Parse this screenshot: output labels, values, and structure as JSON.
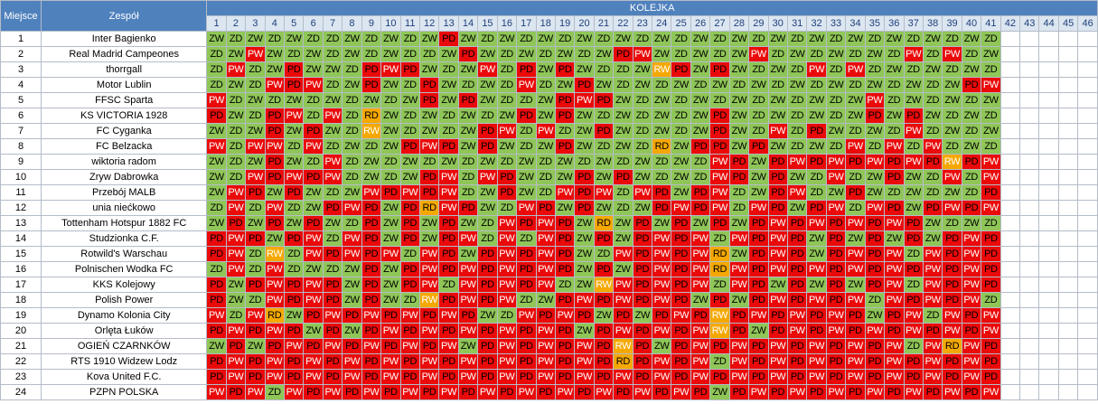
{
  "header": {
    "position_label": "Miejsce",
    "team_label": "Zespół",
    "round_group_label": "KOLEJKA"
  },
  "rounds": [
    "1",
    "2",
    "3",
    "4",
    "5",
    "6",
    "7",
    "8",
    "9",
    "10",
    "11",
    "12",
    "13",
    "14",
    "15",
    "16",
    "17",
    "18",
    "19",
    "20",
    "21",
    "22",
    "23",
    "24",
    "25",
    "26",
    "27",
    "28",
    "29",
    "30",
    "31",
    "32",
    "33",
    "34",
    "35",
    "36",
    "37",
    "38",
    "39",
    "40",
    "41",
    "42",
    "43",
    "44",
    "45",
    "46"
  ],
  "legend_colors": {
    "ZW": "#8fc657",
    "ZD": "#8fc657",
    "PW": "#ea0a0a",
    "PD": "#ea0a0a",
    "RW": "#f5a800",
    "RD": "#f5a800"
  },
  "teams": [
    {
      "pos": "1",
      "name": "Inter Bagienko",
      "results": [
        "ZW",
        "ZD",
        "ZW",
        "ZD",
        "ZW",
        "ZD",
        "ZD",
        "ZW",
        "ZD",
        "ZW",
        "ZD",
        "ZW",
        "PD",
        "ZW",
        "ZD",
        "ZW",
        "ZD",
        "ZW",
        "ZD",
        "ZW",
        "ZD",
        "ZW",
        "ZD",
        "ZW",
        "ZD",
        "ZW",
        "ZD",
        "ZW",
        "ZD",
        "ZW",
        "ZD",
        "ZW",
        "ZD",
        "ZW",
        "ZD",
        "ZW",
        "ZD",
        "ZW",
        "ZD",
        "ZW",
        "ZD",
        "",
        "",
        "",
        "",
        ""
      ]
    },
    {
      "pos": "2",
      "name": "Real Madrid Campeones",
      "results": [
        "ZD",
        "ZW",
        "PW",
        "ZW",
        "ZD",
        "ZW",
        "ZD",
        "ZW",
        "ZD",
        "ZW",
        "ZD",
        "ZD",
        "ZW",
        "PD",
        "ZW",
        "ZD",
        "ZW",
        "ZD",
        "ZW",
        "ZD",
        "ZW",
        "PD",
        "PW",
        "ZW",
        "ZD",
        "ZW",
        "ZD",
        "ZW",
        "PW",
        "ZD",
        "ZW",
        "ZD",
        "ZW",
        "ZD",
        "ZW",
        "ZD",
        "PW",
        "ZD",
        "PW",
        "ZD",
        "ZW",
        "",
        "",
        "",
        "",
        ""
      ]
    },
    {
      "pos": "3",
      "name": "thorrgall",
      "results": [
        "ZD",
        "PW",
        "ZD",
        "ZW",
        "PD",
        "ZW",
        "ZW",
        "ZD",
        "PD",
        "PW",
        "PD",
        "ZW",
        "ZD",
        "ZW",
        "PW",
        "ZD",
        "PD",
        "ZW",
        "PD",
        "ZW",
        "ZD",
        "ZD",
        "ZW",
        "RW",
        "PD",
        "ZW",
        "PD",
        "ZW",
        "ZD",
        "ZW",
        "ZD",
        "PW",
        "ZD",
        "PW",
        "ZD",
        "ZW",
        "ZD",
        "ZW",
        "ZD",
        "ZW",
        "ZD",
        "",
        "",
        "",
        "",
        ""
      ]
    },
    {
      "pos": "4",
      "name": "Motor Lublin",
      "results": [
        "ZD",
        "ZW",
        "ZD",
        "PW",
        "PD",
        "PW",
        "ZD",
        "ZW",
        "PD",
        "ZW",
        "ZD",
        "PD",
        "ZW",
        "ZD",
        "ZW",
        "ZD",
        "PW",
        "ZD",
        "ZW",
        "PD",
        "ZW",
        "ZD",
        "ZW",
        "ZD",
        "ZW",
        "ZD",
        "ZW",
        "ZD",
        "ZW",
        "ZD",
        "ZW",
        "ZD",
        "ZW",
        "ZD",
        "ZW",
        "ZD",
        "ZW",
        "ZD",
        "ZW",
        "PD",
        "PW",
        "",
        "",
        "",
        "",
        ""
      ]
    },
    {
      "pos": "5",
      "name": "FFSC Sparta",
      "results": [
        "PW",
        "ZD",
        "ZW",
        "ZD",
        "ZW",
        "ZD",
        "ZW",
        "ZD",
        "ZW",
        "ZD",
        "ZW",
        "PD",
        "ZW",
        "PD",
        "ZW",
        "ZD",
        "ZD",
        "ZW",
        "PD",
        "PW",
        "PD",
        "ZW",
        "ZD",
        "ZW",
        "ZD",
        "ZW",
        "ZD",
        "ZW",
        "ZD",
        "ZW",
        "ZD",
        "ZW",
        "ZD",
        "ZW",
        "PW",
        "ZD",
        "ZW",
        "ZD",
        "ZW",
        "ZD",
        "ZW",
        "",
        "",
        "",
        "",
        ""
      ]
    },
    {
      "pos": "6",
      "name": "KS VICTORIA 1928",
      "results": [
        "PD",
        "ZW",
        "ZD",
        "PD",
        "PW",
        "ZD",
        "PW",
        "ZD",
        "RD",
        "ZW",
        "ZD",
        "ZW",
        "ZD",
        "ZW",
        "ZD",
        "ZW",
        "PD",
        "ZW",
        "PD",
        "ZW",
        "ZD",
        "ZW",
        "ZD",
        "ZW",
        "ZD",
        "ZW",
        "PD",
        "ZW",
        "ZD",
        "ZW",
        "ZD",
        "ZW",
        "ZD",
        "ZW",
        "PD",
        "ZW",
        "PD",
        "ZW",
        "ZD",
        "ZW",
        "ZD",
        "",
        "",
        "",
        "",
        ""
      ]
    },
    {
      "pos": "7",
      "name": "FC Cyganka",
      "results": [
        "ZW",
        "ZD",
        "ZW",
        "PD",
        "ZW",
        "PD",
        "ZW",
        "ZD",
        "RW",
        "ZW",
        "ZD",
        "ZW",
        "ZD",
        "ZW",
        "PD",
        "PW",
        "ZD",
        "PW",
        "ZD",
        "ZW",
        "PD",
        "ZW",
        "ZD",
        "ZW",
        "ZD",
        "ZW",
        "PD",
        "ZW",
        "ZD",
        "PW",
        "ZD",
        "PD",
        "ZW",
        "ZD",
        "ZW",
        "ZD",
        "PW",
        "ZD",
        "ZW",
        "ZD",
        "ZW",
        "",
        "",
        "",
        "",
        ""
      ]
    },
    {
      "pos": "8",
      "name": "FC Belzacka",
      "results": [
        "PW",
        "ZD",
        "PW",
        "PW",
        "ZD",
        "PW",
        "ZD",
        "ZW",
        "ZD",
        "ZW",
        "PD",
        "PW",
        "PD",
        "ZW",
        "PD",
        "ZW",
        "ZD",
        "ZW",
        "PD",
        "ZW",
        "ZD",
        "ZW",
        "ZD",
        "RD",
        "ZW",
        "PD",
        "PD",
        "ZW",
        "PD",
        "ZW",
        "ZD",
        "ZW",
        "ZD",
        "PW",
        "ZD",
        "PW",
        "ZD",
        "PW",
        "ZD",
        "ZW",
        "ZD",
        "",
        "",
        "",
        "",
        ""
      ]
    },
    {
      "pos": "9",
      "name": "wiktoria radom",
      "results": [
        "ZW",
        "ZD",
        "ZW",
        "PD",
        "ZW",
        "ZD",
        "PW",
        "ZD",
        "ZW",
        "ZD",
        "ZW",
        "ZD",
        "ZW",
        "ZD",
        "ZW",
        "ZD",
        "ZW",
        "ZD",
        "ZW",
        "ZD",
        "ZW",
        "ZD",
        "ZW",
        "ZD",
        "ZW",
        "ZD",
        "PW",
        "PD",
        "ZW",
        "PD",
        "PW",
        "PD",
        "PW",
        "PD",
        "PW",
        "PD",
        "PW",
        "PD",
        "RW",
        "PD",
        "PW",
        "",
        "",
        "",
        "",
        ""
      ]
    },
    {
      "pos": "10",
      "name": "Zryw Dabrowka",
      "results": [
        "ZW",
        "ZD",
        "PW",
        "PD",
        "PW",
        "PD",
        "PW",
        "ZD",
        "ZW",
        "ZD",
        "ZW",
        "PD",
        "PW",
        "ZD",
        "PW",
        "PD",
        "ZW",
        "ZD",
        "ZW",
        "PD",
        "ZW",
        "PD",
        "ZW",
        "ZD",
        "ZW",
        "ZD",
        "PW",
        "PD",
        "ZW",
        "PD",
        "ZW",
        "ZD",
        "PW",
        "ZD",
        "ZW",
        "PD",
        "ZW",
        "ZD",
        "PW",
        "ZD",
        "PW",
        "",
        "",
        "",
        "",
        ""
      ]
    },
    {
      "pos": "11",
      "name": "Przebój MALB",
      "results": [
        "ZW",
        "PW",
        "PD",
        "ZW",
        "PD",
        "ZW",
        "ZD",
        "ZW",
        "PW",
        "PD",
        "PW",
        "PD",
        "PW",
        "ZD",
        "ZW",
        "PD",
        "ZW",
        "ZD",
        "PW",
        "PD",
        "PW",
        "ZD",
        "PW",
        "PD",
        "ZW",
        "PD",
        "PW",
        "ZD",
        "ZW",
        "PD",
        "PW",
        "ZD",
        "ZW",
        "PD",
        "ZW",
        "ZD",
        "ZW",
        "ZD",
        "ZW",
        "ZD",
        "PD",
        "",
        "",
        "",
        "",
        ""
      ]
    },
    {
      "pos": "12",
      "name": "unia niećkowo",
      "results": [
        "ZD",
        "PW",
        "ZD",
        "PW",
        "ZD",
        "ZW",
        "PD",
        "PW",
        "PD",
        "ZW",
        "PD",
        "RD",
        "PW",
        "PD",
        "ZW",
        "ZD",
        "PW",
        "PD",
        "ZW",
        "PD",
        "ZW",
        "ZD",
        "ZW",
        "PD",
        "PW",
        "PD",
        "PW",
        "ZD",
        "PW",
        "PD",
        "ZW",
        "PD",
        "PW",
        "ZD",
        "PW",
        "PD",
        "ZW",
        "PD",
        "PW",
        "PD",
        "PW",
        "",
        "",
        "",
        "",
        ""
      ]
    },
    {
      "pos": "13",
      "name": "Tottenham Hotspur 1882 FC",
      "results": [
        "ZW",
        "PD",
        "ZW",
        "PD",
        "ZW",
        "PD",
        "ZW",
        "ZD",
        "PD",
        "ZW",
        "PD",
        "ZW",
        "PD",
        "ZW",
        "ZD",
        "PW",
        "PD",
        "PW",
        "PD",
        "ZW",
        "RD",
        "ZW",
        "PD",
        "ZW",
        "PD",
        "ZW",
        "PD",
        "ZW",
        "PD",
        "PW",
        "PD",
        "PW",
        "PD",
        "PW",
        "PD",
        "PW",
        "PD",
        "ZW",
        "ZD",
        "ZW",
        "ZD",
        "",
        "",
        "",
        "",
        ""
      ]
    },
    {
      "pos": "14",
      "name": "Studzionka C.F.",
      "results": [
        "PD",
        "PW",
        "PD",
        "ZW",
        "PD",
        "PW",
        "ZD",
        "PW",
        "PD",
        "ZW",
        "PD",
        "ZW",
        "PD",
        "PW",
        "ZD",
        "PW",
        "ZD",
        "PW",
        "PD",
        "ZW",
        "PD",
        "ZW",
        "PD",
        "PW",
        "PD",
        "PW",
        "ZD",
        "PW",
        "PD",
        "PW",
        "PD",
        "ZW",
        "PD",
        "ZW",
        "PD",
        "ZW",
        "PD",
        "ZW",
        "PD",
        "PW",
        "PD",
        "",
        "",
        "",
        "",
        ""
      ]
    },
    {
      "pos": "15",
      "name": "Rotwild's Warschau",
      "results": [
        "PD",
        "PW",
        "ZD",
        "RW",
        "ZD",
        "PW",
        "PD",
        "PW",
        "PD",
        "PW",
        "ZD",
        "PW",
        "PD",
        "ZW",
        "PD",
        "PW",
        "PD",
        "PW",
        "PD",
        "ZW",
        "ZD",
        "PW",
        "PD",
        "PW",
        "PD",
        "PW",
        "RD",
        "ZW",
        "PD",
        "PW",
        "PD",
        "ZW",
        "PD",
        "PW",
        "PD",
        "PW",
        "ZD",
        "PW",
        "PD",
        "PW",
        "PD",
        "",
        "",
        "",
        "",
        ""
      ]
    },
    {
      "pos": "16",
      "name": "Polnischen Wodka FC",
      "results": [
        "ZD",
        "PW",
        "ZD",
        "PW",
        "ZD",
        "ZW",
        "ZD",
        "ZW",
        "PD",
        "ZW",
        "PD",
        "PW",
        "PD",
        "PW",
        "PD",
        "PW",
        "PD",
        "PW",
        "PD",
        "ZW",
        "PD",
        "ZW",
        "PD",
        "PW",
        "PD",
        "PW",
        "RD",
        "PW",
        "PD",
        "PW",
        "PD",
        "PW",
        "PD",
        "PW",
        "PD",
        "PW",
        "PD",
        "PW",
        "PD",
        "PW",
        "PD",
        "",
        "",
        "",
        "",
        ""
      ]
    },
    {
      "pos": "17",
      "name": "KKS Kolejowy",
      "results": [
        "PD",
        "ZW",
        "PD",
        "PW",
        "PD",
        "PW",
        "PD",
        "ZW",
        "PD",
        "ZW",
        "PD",
        "PW",
        "ZD",
        "PW",
        "PD",
        "PW",
        "PD",
        "PW",
        "ZD",
        "ZW",
        "RW",
        "PW",
        "PD",
        "PW",
        "PD",
        "PW",
        "ZD",
        "PW",
        "PD",
        "ZW",
        "PD",
        "ZW",
        "PD",
        "ZW",
        "PD",
        "PW",
        "ZD",
        "PW",
        "PD",
        "PW",
        "PD",
        "",
        "",
        "",
        "",
        ""
      ]
    },
    {
      "pos": "18",
      "name": "Polish Power",
      "results": [
        "PD",
        "ZW",
        "ZD",
        "PW",
        "PD",
        "PW",
        "PD",
        "ZW",
        "PD",
        "ZW",
        "ZD",
        "RW",
        "PD",
        "PW",
        "PD",
        "PW",
        "ZD",
        "ZW",
        "PD",
        "PW",
        "PD",
        "PW",
        "PD",
        "PW",
        "PD",
        "ZW",
        "PD",
        "ZW",
        "PD",
        "PW",
        "PD",
        "PW",
        "PD",
        "PW",
        "ZD",
        "PW",
        "PD",
        "PW",
        "PD",
        "PW",
        "ZD",
        "",
        "",
        "",
        "",
        ""
      ]
    },
    {
      "pos": "19",
      "name": "Dynamo Kolonia City",
      "results": [
        "PW",
        "ZD",
        "PW",
        "RD",
        "ZW",
        "PD",
        "PW",
        "PD",
        "PW",
        "PD",
        "PW",
        "PD",
        "PW",
        "PD",
        "ZW",
        "ZD",
        "PW",
        "PD",
        "PW",
        "PD",
        "ZW",
        "PD",
        "ZW",
        "PD",
        "PW",
        "PD",
        "RW",
        "PD",
        "PW",
        "PD",
        "PW",
        "PD",
        "PW",
        "PD",
        "ZW",
        "PD",
        "PW",
        "ZD",
        "PW",
        "PD",
        "PW",
        "",
        "",
        "",
        "",
        ""
      ]
    },
    {
      "pos": "20",
      "name": "Orlęta Łuków",
      "results": [
        "PD",
        "PW",
        "PD",
        "PW",
        "PD",
        "ZW",
        "PD",
        "ZW",
        "PD",
        "PW",
        "PD",
        "PW",
        "PD",
        "PW",
        "PD",
        "PW",
        "PD",
        "PW",
        "PD",
        "ZW",
        "PD",
        "PW",
        "PD",
        "PW",
        "PD",
        "PW",
        "RW",
        "PD",
        "ZW",
        "PD",
        "PW",
        "PD",
        "PW",
        "PD",
        "PW",
        "PD",
        "PW",
        "PD",
        "PW",
        "PD",
        "PW",
        "",
        "",
        "",
        "",
        ""
      ]
    },
    {
      "pos": "21",
      "name": "OGIEŃ CZARNKÓW",
      "results": [
        "ZW",
        "PD",
        "ZW",
        "PD",
        "PW",
        "PD",
        "PW",
        "PD",
        "PW",
        "PD",
        "PW",
        "PD",
        "PW",
        "ZW",
        "PD",
        "PW",
        "PD",
        "PW",
        "PD",
        "PW",
        "PD",
        "RW",
        "PD",
        "ZW",
        "PD",
        "PW",
        "PD",
        "PW",
        "PD",
        "PW",
        "PD",
        "PW",
        "PD",
        "PW",
        "PD",
        "PW",
        "ZD",
        "PW",
        "RD",
        "PW",
        "PD",
        "",
        "",
        "",
        "",
        ""
      ]
    },
    {
      "pos": "22",
      "name": "RTS 1910 Widzew Lodz",
      "results": [
        "PD",
        "PW",
        "PD",
        "PW",
        "PD",
        "PW",
        "PD",
        "PW",
        "PD",
        "PW",
        "PD",
        "PW",
        "PD",
        "PW",
        "PD",
        "PW",
        "PD",
        "PW",
        "PD",
        "PW",
        "PD",
        "RD",
        "PD",
        "PW",
        "PD",
        "PW",
        "ZD",
        "PW",
        "PD",
        "PW",
        "PD",
        "PW",
        "PD",
        "PW",
        "PD",
        "PW",
        "PD",
        "PW",
        "PD",
        "PW",
        "PD",
        "",
        "",
        "",
        "",
        ""
      ]
    },
    {
      "pos": "23",
      "name": "Kova United F.C.",
      "results": [
        "PD",
        "PW",
        "PD",
        "PW",
        "PD",
        "PW",
        "PD",
        "PW",
        "PD",
        "PW",
        "PD",
        "PW",
        "PD",
        "PW",
        "PD",
        "PW",
        "PD",
        "PW",
        "PD",
        "PW",
        "PD",
        "PW",
        "PD",
        "PW",
        "PD",
        "PW",
        "PD",
        "PW",
        "PD",
        "PW",
        "PD",
        "PW",
        "PD",
        "PW",
        "PD",
        "PW",
        "PD",
        "PW",
        "PD",
        "PW",
        "PD",
        "",
        "",
        "",
        "",
        ""
      ]
    },
    {
      "pos": "24",
      "name": "PZPN POLSKA",
      "results": [
        "PW",
        "PD",
        "PW",
        "ZD",
        "PW",
        "PD",
        "PW",
        "PD",
        "PW",
        "PD",
        "PW",
        "PD",
        "PW",
        "PD",
        "PW",
        "PD",
        "PW",
        "PD",
        "PW",
        "PD",
        "PW",
        "PD",
        "PW",
        "PD",
        "PW",
        "PD",
        "ZW",
        "PD",
        "PW",
        "PD",
        "PW",
        "PD",
        "PW",
        "PD",
        "PW",
        "PD",
        "PW",
        "PD",
        "PW",
        "PD",
        "PW",
        "",
        "",
        "",
        "",
        ""
      ]
    }
  ]
}
